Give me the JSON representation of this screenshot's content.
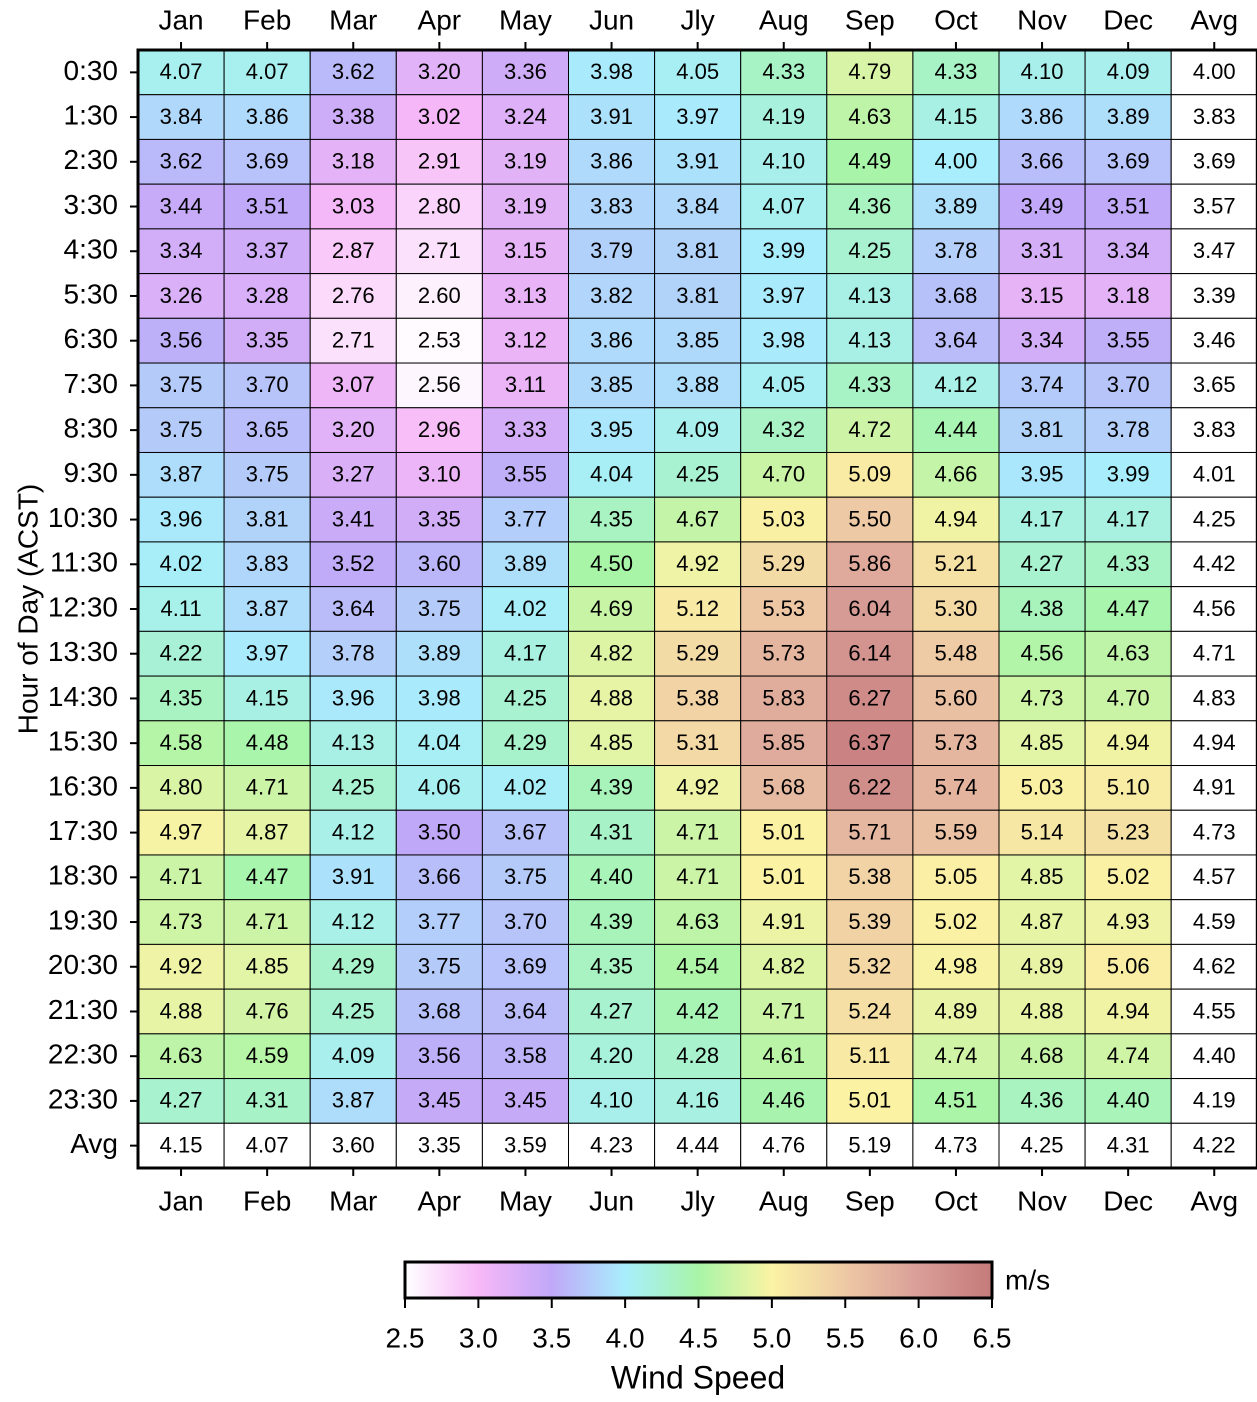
{
  "chart_data": {
    "type": "heatmap",
    "y_label": "Hour of Day (ACST)",
    "categories": [
      "Jan",
      "Feb",
      "Mar",
      "Apr",
      "May",
      "Jun",
      "Jly",
      "Aug",
      "Sep",
      "Oct",
      "Nov",
      "Dec",
      "Avg"
    ],
    "y_categories": [
      "0:30",
      "1:30",
      "2:30",
      "3:30",
      "4:30",
      "5:30",
      "6:30",
      "7:30",
      "8:30",
      "9:30",
      "10:30",
      "11:30",
      "12:30",
      "13:30",
      "14:30",
      "15:30",
      "16:30",
      "17:30",
      "18:30",
      "19:30",
      "20:30",
      "21:30",
      "22:30",
      "23:30",
      "Avg"
    ],
    "uncolored_rows": [
      24
    ],
    "uncolored_columns": [
      12
    ],
    "values": [
      [
        4.07,
        4.07,
        3.62,
        3.2,
        3.36,
        3.98,
        4.05,
        4.33,
        4.79,
        4.33,
        4.1,
        4.09,
        4
      ],
      [
        3.84,
        3.86,
        3.38,
        3.02,
        3.24,
        3.91,
        3.97,
        4.19,
        4.63,
        4.15,
        3.86,
        3.89,
        3.83
      ],
      [
        3.62,
        3.69,
        3.18,
        2.91,
        3.19,
        3.86,
        3.91,
        4.1,
        4.49,
        4,
        3.66,
        3.69,
        3.69
      ],
      [
        3.44,
        3.51,
        3.03,
        2.8,
        3.19,
        3.83,
        3.84,
        4.07,
        4.36,
        3.89,
        3.49,
        3.51,
        3.57
      ],
      [
        3.34,
        3.37,
        2.87,
        2.71,
        3.15,
        3.79,
        3.81,
        3.99,
        4.25,
        3.78,
        3.31,
        3.34,
        3.47
      ],
      [
        3.26,
        3.28,
        2.76,
        2.6,
        3.13,
        3.82,
        3.81,
        3.97,
        4.13,
        3.68,
        3.15,
        3.18,
        3.39
      ],
      [
        3.56,
        3.35,
        2.71,
        2.53,
        3.12,
        3.86,
        3.85,
        3.98,
        4.13,
        3.64,
        3.34,
        3.55,
        3.46
      ],
      [
        3.75,
        3.7,
        3.07,
        2.56,
        3.11,
        3.85,
        3.88,
        4.05,
        4.33,
        4.12,
        3.74,
        3.7,
        3.65
      ],
      [
        3.75,
        3.65,
        3.2,
        2.96,
        3.33,
        3.95,
        4.09,
        4.32,
        4.72,
        4.44,
        3.81,
        3.78,
        3.83
      ],
      [
        3.87,
        3.75,
        3.27,
        3.1,
        3.55,
        4.04,
        4.25,
        4.7,
        5.09,
        4.66,
        3.95,
        3.99,
        4.01
      ],
      [
        3.96,
        3.81,
        3.41,
        3.35,
        3.77,
        4.35,
        4.67,
        5.03,
        5.5,
        4.94,
        4.17,
        4.17,
        4.25
      ],
      [
        4.02,
        3.83,
        3.52,
        3.6,
        3.89,
        4.5,
        4.92,
        5.29,
        5.86,
        5.21,
        4.27,
        4.33,
        4.42
      ],
      [
        4.11,
        3.87,
        3.64,
        3.75,
        4.02,
        4.69,
        5.12,
        5.53,
        6.04,
        5.3,
        4.38,
        4.47,
        4.56
      ],
      [
        4.22,
        3.97,
        3.78,
        3.89,
        4.17,
        4.82,
        5.29,
        5.73,
        6.14,
        5.48,
        4.56,
        4.63,
        4.71
      ],
      [
        4.35,
        4.15,
        3.96,
        3.98,
        4.25,
        4.88,
        5.38,
        5.83,
        6.27,
        5.6,
        4.73,
        4.7,
        4.83
      ],
      [
        4.58,
        4.48,
        4.13,
        4.04,
        4.29,
        4.85,
        5.31,
        5.85,
        6.37,
        5.73,
        4.85,
        4.94,
        4.94
      ],
      [
        4.8,
        4.71,
        4.25,
        4.06,
        4.02,
        4.39,
        4.92,
        5.68,
        6.22,
        5.74,
        5.03,
        5.1,
        4.91
      ],
      [
        4.97,
        4.87,
        4.12,
        3.5,
        3.67,
        4.31,
        4.71,
        5.01,
        5.71,
        5.59,
        5.14,
        5.23,
        4.73
      ],
      [
        4.71,
        4.47,
        3.91,
        3.66,
        3.75,
        4.4,
        4.71,
        5.01,
        5.38,
        5.05,
        4.85,
        5.02,
        4.57
      ],
      [
        4.73,
        4.71,
        4.12,
        3.77,
        3.7,
        4.39,
        4.63,
        4.91,
        5.39,
        5.02,
        4.87,
        4.93,
        4.59
      ],
      [
        4.92,
        4.85,
        4.29,
        3.75,
        3.69,
        4.35,
        4.54,
        4.82,
        5.32,
        4.98,
        4.89,
        5.06,
        4.62
      ],
      [
        4.88,
        4.76,
        4.25,
        3.68,
        3.64,
        4.27,
        4.42,
        4.71,
        5.24,
        4.89,
        4.88,
        4.94,
        4.55
      ],
      [
        4.63,
        4.59,
        4.09,
        3.56,
        3.58,
        4.2,
        4.28,
        4.61,
        5.11,
        4.74,
        4.68,
        4.74,
        4.4
      ],
      [
        4.27,
        4.31,
        3.87,
        3.45,
        3.45,
        4.1,
        4.16,
        4.46,
        5.01,
        4.51,
        4.36,
        4.4,
        4.19
      ],
      [
        4.15,
        4.07,
        3.6,
        3.35,
        3.59,
        4.23,
        4.44,
        4.76,
        5.19,
        4.73,
        4.25,
        4.31,
        4.22
      ]
    ],
    "value_labels": [
      [
        "4.07",
        "4.07",
        "3.62",
        "3.20",
        "3.36",
        "3.98",
        "4.05",
        "4.33",
        "4.79",
        "4.33",
        "4.10",
        "4.09",
        "4.00"
      ],
      [
        "3.84",
        "3.86",
        "3.38",
        "3.02",
        "3.24",
        "3.91",
        "3.97",
        "4.19",
        "4.63",
        "4.15",
        "3.86",
        "3.89",
        "3.83"
      ],
      [
        "3.62",
        "3.69",
        "3.18",
        "2.91",
        "3.19",
        "3.86",
        "3.91",
        "4.10",
        "4.49",
        "4.00",
        "3.66",
        "3.69",
        "3.69"
      ],
      [
        "3.44",
        "3.51",
        "3.03",
        "2.80",
        "3.19",
        "3.83",
        "3.84",
        "4.07",
        "4.36",
        "3.89",
        "3.49",
        "3.51",
        "3.57"
      ],
      [
        "3.34",
        "3.37",
        "2.87",
        "2.71",
        "3.15",
        "3.79",
        "3.81",
        "3.99",
        "4.25",
        "3.78",
        "3.31",
        "3.34",
        "3.47"
      ],
      [
        "3.26",
        "3.28",
        "2.76",
        "2.60",
        "3.13",
        "3.82",
        "3.81",
        "3.97",
        "4.13",
        "3.68",
        "3.15",
        "3.18",
        "3.39"
      ],
      [
        "3.56",
        "3.35",
        "2.71",
        "2.53",
        "3.12",
        "3.86",
        "3.85",
        "3.98",
        "4.13",
        "3.64",
        "3.34",
        "3.55",
        "3.46"
      ],
      [
        "3.75",
        "3.70",
        "3.07",
        "2.56",
        "3.11",
        "3.85",
        "3.88",
        "4.05",
        "4.33",
        "4.12",
        "3.74",
        "3.70",
        "3.65"
      ],
      [
        "3.75",
        "3.65",
        "3.20",
        "2.96",
        "3.33",
        "3.95",
        "4.09",
        "4.32",
        "4.72",
        "4.44",
        "3.81",
        "3.78",
        "3.83"
      ],
      [
        "3.87",
        "3.75",
        "3.27",
        "3.10",
        "3.55",
        "4.04",
        "4.25",
        "4.70",
        "5.09",
        "4.66",
        "3.95",
        "3.99",
        "4.01"
      ],
      [
        "3.96",
        "3.81",
        "3.41",
        "3.35",
        "3.77",
        "4.35",
        "4.67",
        "5.03",
        "5.50",
        "4.94",
        "4.17",
        "4.17",
        "4.25"
      ],
      [
        "4.02",
        "3.83",
        "3.52",
        "3.60",
        "3.89",
        "4.50",
        "4.92",
        "5.29",
        "5.86",
        "5.21",
        "4.27",
        "4.33",
        "4.42"
      ],
      [
        "4.11",
        "3.87",
        "3.64",
        "3.75",
        "4.02",
        "4.69",
        "5.12",
        "5.53",
        "6.04",
        "5.30",
        "4.38",
        "4.47",
        "4.56"
      ],
      [
        "4.22",
        "3.97",
        "3.78",
        "3.89",
        "4.17",
        "4.82",
        "5.29",
        "5.73",
        "6.14",
        "5.48",
        "4.56",
        "4.63",
        "4.71"
      ],
      [
        "4.35",
        "4.15",
        "3.96",
        "3.98",
        "4.25",
        "4.88",
        "5.38",
        "5.83",
        "6.27",
        "5.60",
        "4.73",
        "4.70",
        "4.83"
      ],
      [
        "4.58",
        "4.48",
        "4.13",
        "4.04",
        "4.29",
        "4.85",
        "5.31",
        "5.85",
        "6.37",
        "5.73",
        "4.85",
        "4.94",
        "4.94"
      ],
      [
        "4.80",
        "4.71",
        "4.25",
        "4.06",
        "4.02",
        "4.39",
        "4.92",
        "5.68",
        "6.22",
        "5.74",
        "5.03",
        "5.10",
        "4.91"
      ],
      [
        "4.97",
        "4.87",
        "4.12",
        "3.50",
        "3.67",
        "4.31",
        "4.71",
        "5.01",
        "5.71",
        "5.59",
        "5.14",
        "5.23",
        "4.73"
      ],
      [
        "4.71",
        "4.47",
        "3.91",
        "3.66",
        "3.75",
        "4.40",
        "4.71",
        "5.01",
        "5.38",
        "5.05",
        "4.85",
        "5.02",
        "4.57"
      ],
      [
        "4.73",
        "4.71",
        "4.12",
        "3.77",
        "3.70",
        "4.39",
        "4.63",
        "4.91",
        "5.39",
        "5.02",
        "4.87",
        "4.93",
        "4.59"
      ],
      [
        "4.92",
        "4.85",
        "4.29",
        "3.75",
        "3.69",
        "4.35",
        "4.54",
        "4.82",
        "5.32",
        "4.98",
        "4.89",
        "5.06",
        "4.62"
      ],
      [
        "4.88",
        "4.76",
        "4.25",
        "3.68",
        "3.64",
        "4.27",
        "4.42",
        "4.71",
        "5.24",
        "4.89",
        "4.88",
        "4.94",
        "4.55"
      ],
      [
        "4.63",
        "4.59",
        "4.09",
        "3.56",
        "3.58",
        "4.20",
        "4.28",
        "4.61",
        "5.11",
        "4.74",
        "4.68",
        "4.74",
        "4.40"
      ],
      [
        "4.27",
        "4.31",
        "3.87",
        "3.45",
        "3.45",
        "4.10",
        "4.16",
        "4.46",
        "5.01",
        "4.51",
        "4.36",
        "4.40",
        "4.19"
      ],
      [
        "4.15",
        "4.07",
        "3.60",
        "3.35",
        "3.59",
        "4.23",
        "4.44",
        "4.76",
        "5.19",
        "4.73",
        "4.25",
        "4.31",
        "4.22"
      ]
    ],
    "colorbar": {
      "title": "Wind Speed",
      "unit": "m/s",
      "lim": [
        2.5,
        6.5
      ],
      "ticks": [
        2.5,
        {
          "value": 3,
          "label": "3.0"
        },
        3.5,
        {
          "value": 4,
          "label": "4.0"
        },
        4.5,
        {
          "value": 5,
          "label": "5.0"
        },
        5.5,
        {
          "value": 6,
          "label": "6.0"
        },
        6.5
      ],
      "colors": [
        "#ffffff",
        "#f7b8f7",
        "#c0a8f8",
        "#a8eefc",
        "#a8f5a8",
        "#fbf3a4",
        "#eec9a5",
        "#d99e98",
        "#c57a7a"
      ]
    }
  }
}
